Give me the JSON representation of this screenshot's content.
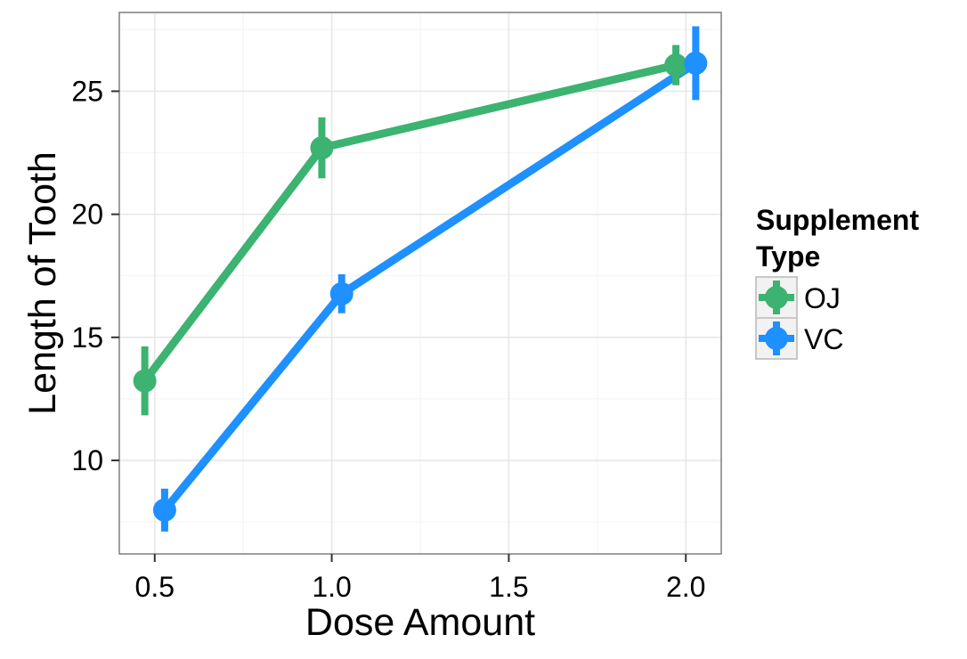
{
  "chart_data": {
    "type": "line",
    "title": "",
    "xlabel": "Dose Amount",
    "ylabel": "Length of Tooth",
    "x": [
      0.5,
      1.0,
      2.0
    ],
    "xlim": [
      0.4,
      2.1
    ],
    "ylim": [
      6.2,
      28.2
    ],
    "x_ticks": [
      0.5,
      1.0,
      1.5,
      2.0
    ],
    "x_tick_labels": [
      "0.5",
      "1.0",
      "1.5",
      "2.0"
    ],
    "y_ticks": [
      10,
      15,
      20,
      25
    ],
    "y_tick_labels": [
      "10",
      "15",
      "20",
      "25"
    ],
    "grid": true,
    "legend": {
      "title_line1": "Supplement",
      "title_line2": "Type",
      "placement": "right"
    },
    "series": [
      {
        "name": "OJ",
        "color": "#3CB371",
        "values": [
          13.23,
          22.7,
          26.06
        ],
        "error_low": [
          11.83,
          21.46,
          25.24
        ],
        "error_high": [
          14.63,
          23.94,
          26.88
        ]
      },
      {
        "name": "VC",
        "color": "#1E90FF",
        "values": [
          7.98,
          16.77,
          26.14
        ],
        "error_low": [
          7.11,
          15.98,
          24.64
        ],
        "error_high": [
          8.85,
          17.56,
          27.64
        ]
      }
    ]
  }
}
